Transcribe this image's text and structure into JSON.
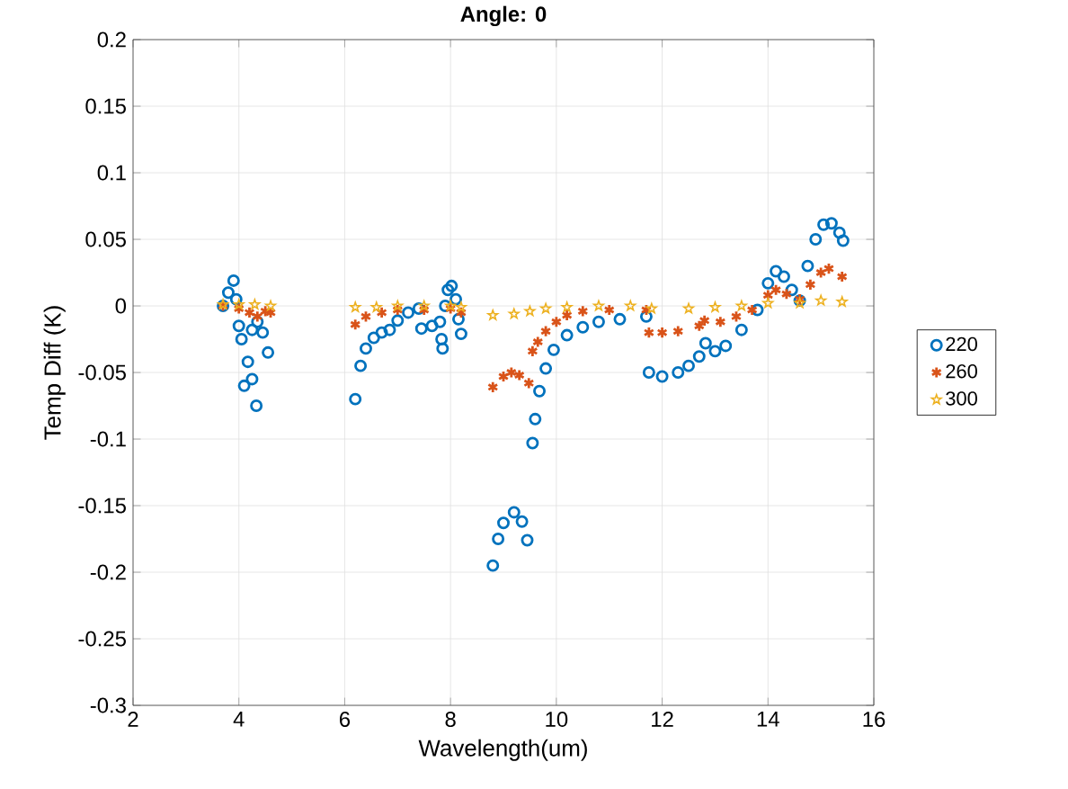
{
  "chart_data": {
    "type": "scatter",
    "title": "Angle: 0",
    "xlabel": "Wavelength(um)",
    "ylabel": "Temp Diff (K)",
    "xlim": [
      2,
      16
    ],
    "ylim": [
      -0.3,
      0.2
    ],
    "xticks": [
      2,
      4,
      6,
      8,
      10,
      12,
      14,
      16
    ],
    "yticks": [
      -0.3,
      -0.25,
      -0.2,
      -0.15,
      -0.1,
      -0.05,
      0,
      0.05,
      0.1,
      0.15,
      0.2
    ],
    "grid": true,
    "legend": "right",
    "series": [
      {
        "name": "220",
        "color": "#0072bd",
        "marker": "circle",
        "x": [
          3.7,
          3.8,
          3.9,
          3.95,
          4.0,
          4.05,
          4.25,
          4.35,
          4.45,
          4.55,
          4.1,
          4.17,
          4.25,
          4.33,
          6.2,
          6.3,
          6.4,
          6.55,
          6.7,
          6.85,
          7.0,
          7.2,
          7.4,
          7.45,
          7.65,
          7.8,
          7.83,
          7.85,
          7.9,
          7.95,
          8.02,
          8.1,
          8.15,
          8.2,
          8.8,
          8.9,
          9.0,
          9.2,
          9.35,
          9.45,
          9.55,
          9.6,
          9.68,
          9.8,
          9.95,
          10.2,
          10.5,
          10.8,
          11.2,
          11.7,
          11.75,
          12.0,
          12.3,
          12.5,
          12.7,
          12.82,
          13.0,
          13.2,
          13.5,
          13.8,
          14.0,
          14.15,
          14.3,
          14.45,
          14.6,
          14.75,
          14.9,
          15.05,
          15.2,
          15.35,
          15.42
        ],
        "values": [
          0.0,
          0.01,
          0.019,
          0.005,
          -0.015,
          -0.025,
          -0.018,
          -0.012,
          -0.02,
          -0.035,
          -0.06,
          -0.042,
          -0.055,
          -0.075,
          -0.07,
          -0.045,
          -0.032,
          -0.024,
          -0.02,
          -0.018,
          -0.011,
          -0.005,
          -0.002,
          -0.017,
          -0.015,
          -0.012,
          -0.025,
          -0.032,
          0.0,
          0.012,
          0.015,
          0.005,
          -0.01,
          -0.021,
          -0.195,
          -0.175,
          -0.163,
          -0.155,
          -0.162,
          -0.176,
          -0.103,
          -0.085,
          -0.064,
          -0.047,
          -0.033,
          -0.022,
          -0.016,
          -0.012,
          -0.01,
          -0.008,
          -0.05,
          -0.053,
          -0.05,
          -0.045,
          -0.038,
          -0.028,
          -0.034,
          -0.03,
          -0.018,
          -0.003,
          0.017,
          0.026,
          0.022,
          0.012,
          0.004,
          0.03,
          0.05,
          0.061,
          0.062,
          0.055,
          0.049
        ]
      },
      {
        "name": "260",
        "color": "#d95319",
        "marker": "cross",
        "x": [
          3.7,
          4.0,
          4.2,
          4.35,
          4.5,
          4.6,
          6.2,
          6.4,
          6.7,
          7.0,
          7.5,
          8.0,
          8.2,
          8.8,
          9.0,
          9.15,
          9.3,
          9.48,
          9.55,
          9.65,
          9.8,
          10.0,
          10.2,
          10.5,
          11.0,
          11.7,
          11.75,
          12.0,
          12.3,
          12.7,
          12.8,
          13.1,
          13.4,
          13.7,
          14.0,
          14.15,
          14.35,
          14.6,
          14.8,
          15.0,
          15.15,
          15.4
        ],
        "values": [
          0.0,
          -0.002,
          -0.005,
          -0.008,
          -0.004,
          -0.005,
          -0.014,
          -0.008,
          -0.005,
          -0.003,
          -0.003,
          -0.002,
          -0.005,
          -0.061,
          -0.053,
          -0.05,
          -0.052,
          -0.058,
          -0.034,
          -0.027,
          -0.019,
          -0.012,
          -0.007,
          -0.004,
          -0.003,
          -0.003,
          -0.02,
          -0.02,
          -0.019,
          -0.015,
          -0.011,
          -0.012,
          -0.008,
          -0.003,
          0.008,
          0.012,
          0.009,
          0.005,
          0.016,
          0.025,
          0.028,
          0.022
        ]
      },
      {
        "name": "300",
        "color": "#edb120",
        "marker": "star",
        "x": [
          3.7,
          4.0,
          4.3,
          4.6,
          6.2,
          6.6,
          7.0,
          7.5,
          8.0,
          8.2,
          8.8,
          9.2,
          9.5,
          9.8,
          10.2,
          10.8,
          11.4,
          11.8,
          12.5,
          13.0,
          13.5,
          14.0,
          14.6,
          15.0,
          15.4
        ],
        "values": [
          0.001,
          0.001,
          0.001,
          0.0,
          -0.001,
          -0.001,
          0.0,
          0.0,
          0.0,
          -0.001,
          -0.007,
          -0.006,
          -0.004,
          -0.002,
          -0.001,
          0.0,
          0.0,
          -0.002,
          -0.002,
          -0.001,
          0.0,
          0.002,
          0.002,
          0.004,
          0.003
        ]
      }
    ]
  }
}
